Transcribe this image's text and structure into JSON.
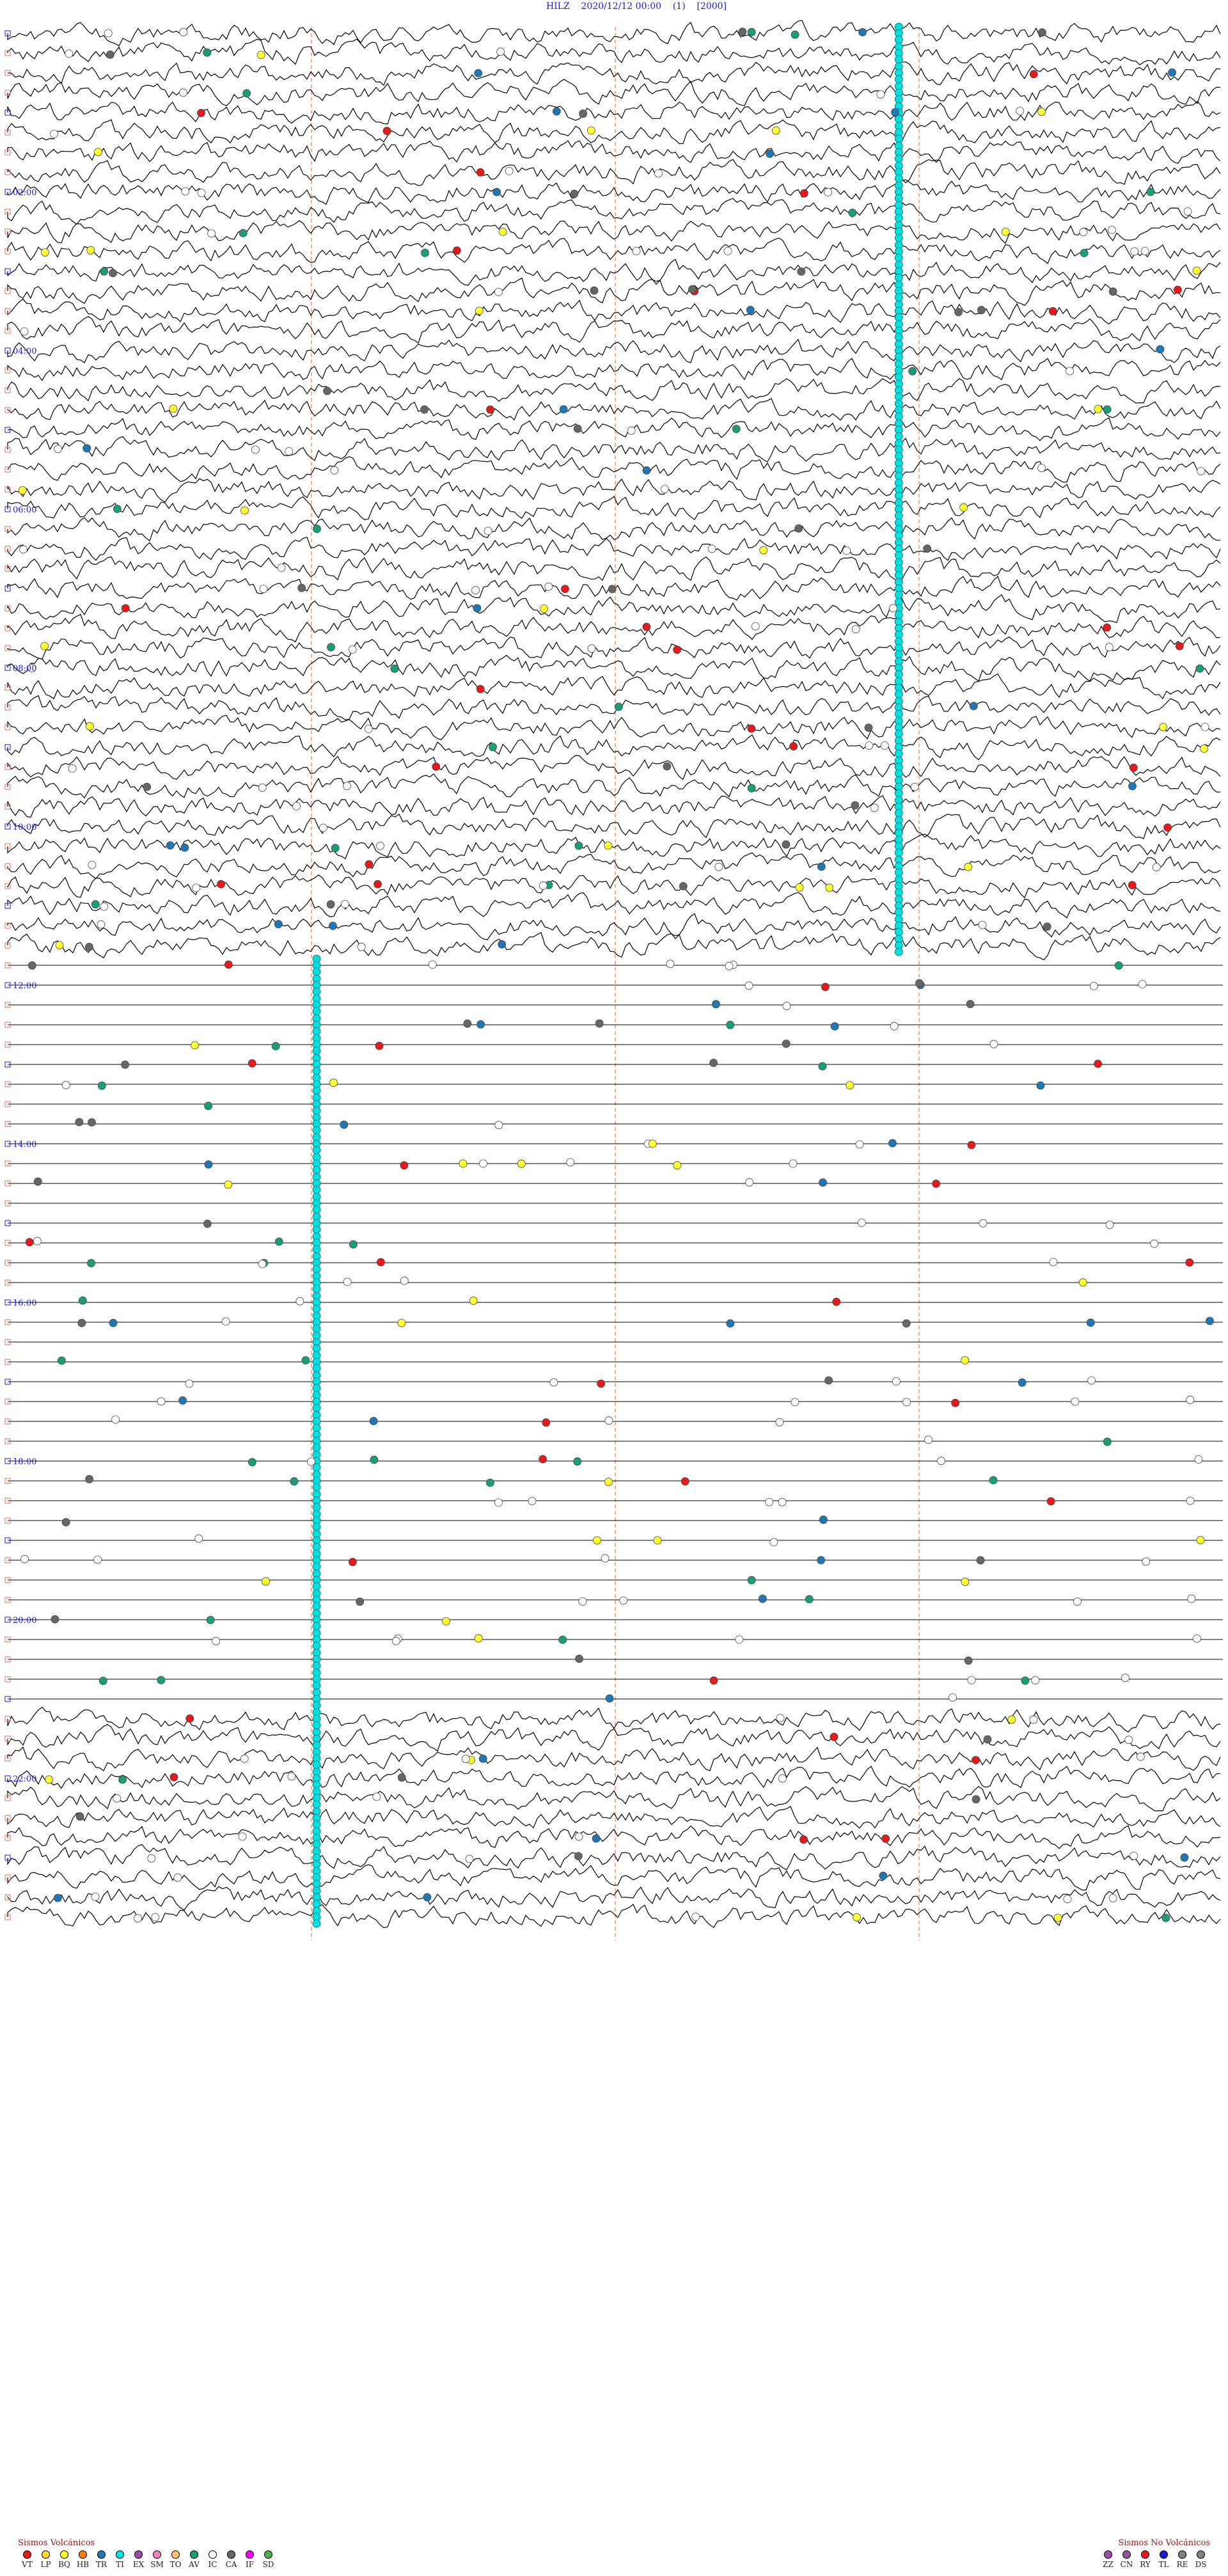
{
  "header": {
    "station": "HILZ",
    "datetime": "2020/12/12 00:00",
    "channel": "(1)",
    "scale": "[2000]"
  },
  "chart_data": {
    "type": "line",
    "title": "HILZ    2020/12/12 00:00    (1)    [2000]",
    "hour_labels": [
      "02:00",
      "04:00",
      "06:00",
      "08:00",
      "10:00",
      "12:00",
      "14:00",
      "16:00",
      "18:00",
      "20:00",
      "22:00"
    ],
    "trace_rows": 96,
    "minutes_per_row": 15,
    "axis_range_minutes": [
      0,
      15
    ],
    "minute_markers": [
      3.75,
      7.5,
      11.25
    ],
    "grid": false,
    "event_marker_column_min": 11.0,
    "segments": [
      {
        "from_row": 0,
        "to_row": 46,
        "state": "noisy"
      },
      {
        "from_row": 47,
        "to_row": 84,
        "state": "flat"
      },
      {
        "from_row": 85,
        "to_row": 95,
        "state": "noisy"
      }
    ]
  },
  "legend_volcanic": {
    "title": "Sismos Volcánicos",
    "items": [
      {
        "code": "VT",
        "color": "#e41a1c"
      },
      {
        "code": "LP",
        "color": "#ffd92f"
      },
      {
        "code": "BQ",
        "color": "#ffff33"
      },
      {
        "code": "HB",
        "color": "#ff7f00"
      },
      {
        "code": "TR",
        "color": "#1f78b4"
      },
      {
        "code": "TI",
        "color": "#00e5e5"
      },
      {
        "code": "EX",
        "color": "#984ea3"
      },
      {
        "code": "SM",
        "color": "#f781bf"
      },
      {
        "code": "TO",
        "color": "#fdbf6f"
      },
      {
        "code": "AV",
        "color": "#1b9e77"
      },
      {
        "code": "IC",
        "color": "#ffffff"
      },
      {
        "code": "CA",
        "color": "#666666"
      },
      {
        "code": "IF",
        "color": "#ff00ff"
      },
      {
        "code": "SD",
        "color": "#4daf4a"
      }
    ]
  },
  "legend_nonvolcanic": {
    "title": "Sismos No Volcánicos",
    "items": [
      {
        "code": "ZZ",
        "color": "#984ea3"
      },
      {
        "code": "CN",
        "color": "#984ea3"
      },
      {
        "code": "RY",
        "color": "#e41a1c"
      },
      {
        "code": "TL",
        "color": "#1a1adb"
      },
      {
        "code": "RE",
        "color": "#808080"
      },
      {
        "code": "DS",
        "color": "#808080"
      }
    ]
  }
}
